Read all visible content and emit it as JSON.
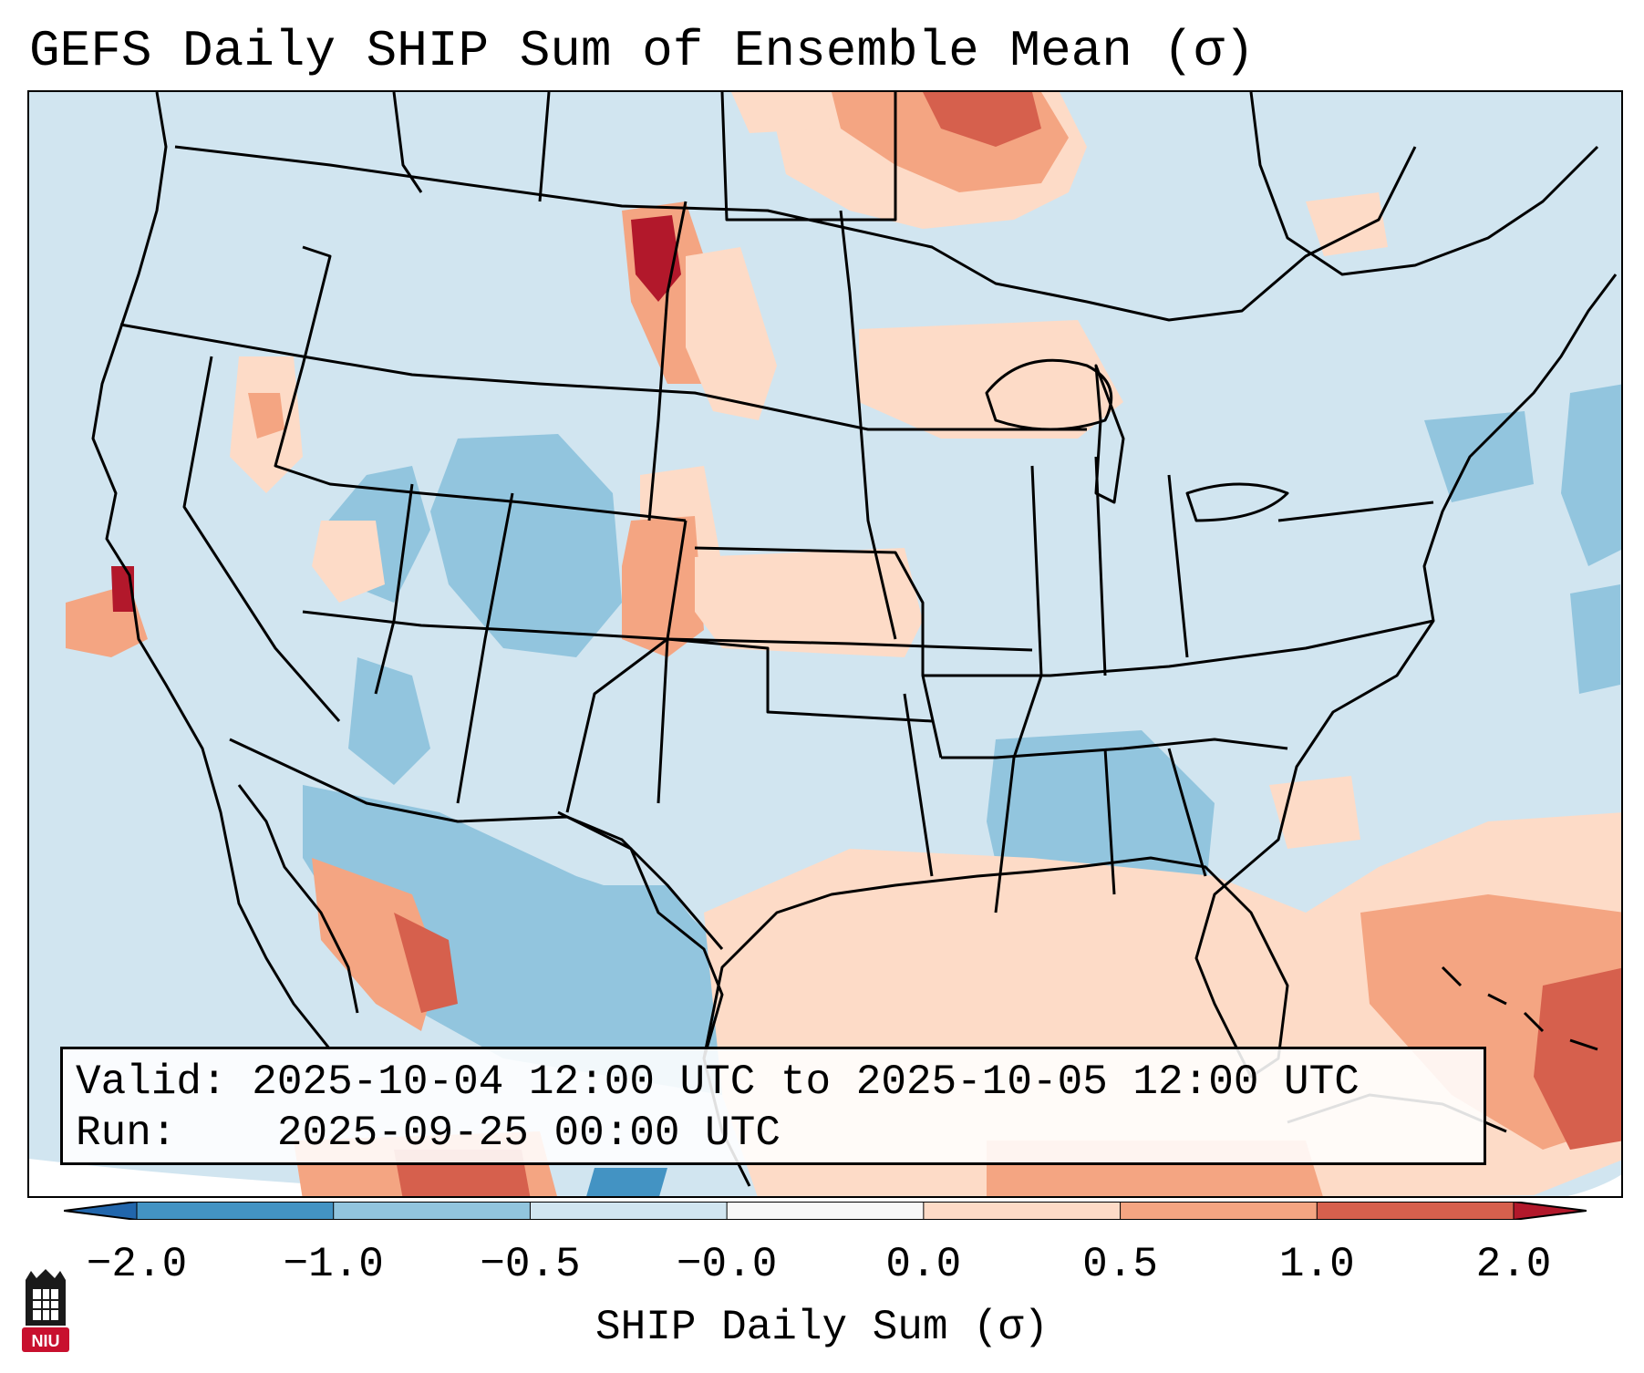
{
  "title": "GEFS Daily SHIP Sum of Ensemble Mean (σ)",
  "info": {
    "valid_label": "Valid:",
    "valid_value": "2025-10-04 12:00 UTC to 2025-10-05 12:00 UTC",
    "run_label": "Run:",
    "run_value": "2025-09-25 00:00 UTC"
  },
  "colorbar": {
    "label": "SHIP Daily Sum (σ)",
    "ticks": [
      "−2.0",
      "−1.0",
      "−0.5",
      "−0.0",
      "0.0",
      "0.5",
      "1.0",
      "2.0"
    ],
    "bins": [
      {
        "range": "<-2.0",
        "color": "#2166ac"
      },
      {
        "range": "-2.0 to -1.0",
        "color": "#4393c3"
      },
      {
        "range": "-1.0 to -0.5",
        "color": "#92c5de"
      },
      {
        "range": "-0.5 to -0.0",
        "color": "#d1e5f0"
      },
      {
        "range": "-0.0 to 0.0",
        "color": "#f7f7f7"
      },
      {
        "range": "0.0 to 0.5",
        "color": "#fddbc7"
      },
      {
        "range": "0.5 to 1.0",
        "color": "#f4a582"
      },
      {
        "range": "1.0 to 2.0",
        "color": "#d6604d"
      },
      {
        "range": ">2.0",
        "color": "#b2182b"
      }
    ]
  },
  "map": {
    "background_color": "#d1e5f0",
    "border_color": "#000000",
    "regions": [
      {
        "name": "montana-north-high",
        "category": "1.0 to 2.0"
      },
      {
        "name": "montana-north-peak",
        "category": ">2.0"
      },
      {
        "name": "colorado-front-range",
        "category": "0.5 to 1.0"
      },
      {
        "name": "kansas",
        "category": "0.0 to 0.5"
      },
      {
        "name": "wisconsin-michigan",
        "category": "0.0 to 0.5"
      },
      {
        "name": "ontario-north",
        "category": "0.5 to 1.0"
      },
      {
        "name": "utah-colorado",
        "category": "-1.0 to -0.5"
      },
      {
        "name": "mississippi-alabama",
        "category": "-1.0 to -0.5"
      },
      {
        "name": "mexico-interior",
        "category": "-1.0 to -0.5"
      },
      {
        "name": "gulf-of-mexico",
        "category": "0.0 to 0.5"
      },
      {
        "name": "caribbean",
        "category": "0.5 to 1.0"
      },
      {
        "name": "california-coast",
        "category": ">2.0"
      }
    ]
  },
  "logo": {
    "text": "NIU",
    "color": "#c8102e"
  }
}
